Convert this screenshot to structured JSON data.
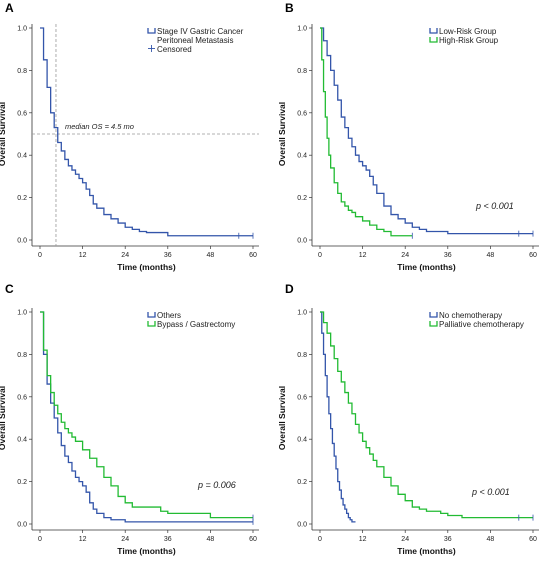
{
  "chart_data": [
    {
      "type": "line",
      "panel_label": "A",
      "xlabel": "Time (months)",
      "ylabel": "Overall Survival",
      "xlim": [
        0,
        60
      ],
      "ylim": [
        0,
        1.0
      ],
      "xticks": [
        0,
        12,
        24,
        36,
        48,
        60
      ],
      "yticks": [
        0.0,
        0.2,
        0.4,
        0.6,
        0.8,
        1.0
      ],
      "legend": "top-right",
      "series": [
        {
          "name": "Stage IV Gastric Cancer Peritoneal Metastasis",
          "name_lines": [
            "Stage IV Gastric Cancer",
            "Peritoneal Metastasis"
          ],
          "color": "#3355aa",
          "x": [
            0,
            1,
            2,
            3,
            4,
            5,
            6,
            7,
            8,
            9,
            10,
            11,
            12,
            13,
            14,
            15,
            16,
            18,
            20,
            22,
            24,
            26,
            28,
            30,
            34,
            36,
            40,
            48,
            56,
            60
          ],
          "y": [
            1.0,
            0.85,
            0.72,
            0.6,
            0.53,
            0.46,
            0.42,
            0.38,
            0.35,
            0.33,
            0.31,
            0.29,
            0.27,
            0.24,
            0.21,
            0.17,
            0.15,
            0.12,
            0.1,
            0.08,
            0.06,
            0.05,
            0.04,
            0.035,
            0.035,
            0.02,
            0.02,
            0.02,
            0.02,
            0.02
          ]
        }
      ],
      "censored_label": "Censored",
      "censored": [
        {
          "x": 56,
          "y": 0.02
        },
        {
          "x": 60,
          "y": 0.02
        }
      ],
      "median_line": {
        "x": 4.5,
        "y": 0.5
      },
      "annotation": "median OS = 4.5 mo"
    },
    {
      "type": "line",
      "panel_label": "B",
      "xlabel": "Time (months)",
      "ylabel": "Overall Survival",
      "xlim": [
        0,
        60
      ],
      "ylim": [
        0,
        1.0
      ],
      "xticks": [
        0,
        12,
        24,
        36,
        48,
        60
      ],
      "yticks": [
        0.0,
        0.2,
        0.4,
        0.6,
        0.8,
        1.0
      ],
      "legend": "top-right",
      "series": [
        {
          "name": "Low-Risk Group",
          "color": "#3355aa",
          "x": [
            0,
            1,
            2,
            3,
            4,
            5,
            6,
            7,
            8,
            9,
            10,
            11,
            12,
            13,
            14,
            15,
            16,
            18,
            20,
            22,
            24,
            26,
            28,
            30,
            34,
            36,
            40,
            48,
            56,
            60
          ],
          "y": [
            1.0,
            0.94,
            0.87,
            0.8,
            0.73,
            0.66,
            0.58,
            0.53,
            0.48,
            0.44,
            0.4,
            0.37,
            0.35,
            0.33,
            0.3,
            0.26,
            0.22,
            0.16,
            0.12,
            0.1,
            0.08,
            0.06,
            0.05,
            0.04,
            0.04,
            0.03,
            0.03,
            0.03,
            0.03,
            0.03
          ]
        },
        {
          "name": "High-Risk Group",
          "color": "#22bb33",
          "x": [
            0,
            0.5,
            1,
            1.5,
            2,
            2.5,
            3,
            4,
            5,
            6,
            7,
            8,
            9,
            10,
            12,
            14,
            16,
            18,
            20,
            22,
            26
          ],
          "y": [
            1.0,
            0.85,
            0.7,
            0.58,
            0.48,
            0.4,
            0.34,
            0.27,
            0.22,
            0.18,
            0.16,
            0.14,
            0.13,
            0.11,
            0.09,
            0.07,
            0.05,
            0.04,
            0.02,
            0.02,
            0.02
          ]
        }
      ],
      "censored": [
        {
          "x": 56,
          "y": 0.03
        },
        {
          "x": 60,
          "y": 0.03
        },
        {
          "x": 26,
          "y": 0.02
        }
      ],
      "pvalue": "p < 0.001"
    },
    {
      "type": "line",
      "panel_label": "C",
      "xlabel": "Time (months)",
      "ylabel": "Overall Survival",
      "xlim": [
        0,
        60
      ],
      "ylim": [
        0,
        1.0
      ],
      "xticks": [
        0,
        12,
        24,
        36,
        48,
        60
      ],
      "yticks": [
        0.0,
        0.2,
        0.4,
        0.6,
        0.8,
        1.0
      ],
      "legend": "top-right",
      "series": [
        {
          "name": "Others",
          "color": "#3355aa",
          "x": [
            0,
            1,
            2,
            3,
            4,
            5,
            6,
            7,
            8,
            9,
            10,
            11,
            12,
            13,
            14,
            15,
            16,
            18,
            20,
            24,
            30,
            36,
            48,
            60
          ],
          "y": [
            1.0,
            0.8,
            0.66,
            0.57,
            0.5,
            0.43,
            0.37,
            0.32,
            0.29,
            0.25,
            0.22,
            0.2,
            0.18,
            0.15,
            0.1,
            0.07,
            0.05,
            0.03,
            0.02,
            0.01,
            0.01,
            0.01,
            0.01,
            0.01
          ]
        },
        {
          "name": "Bypass / Gastrectomy",
          "color": "#22bb33",
          "x": [
            0,
            1,
            2,
            3,
            4,
            5,
            6,
            7,
            8,
            9,
            10,
            12,
            14,
            16,
            18,
            20,
            22,
            24,
            26,
            28,
            30,
            34,
            36,
            48,
            60
          ],
          "y": [
            1.0,
            0.82,
            0.7,
            0.62,
            0.56,
            0.52,
            0.48,
            0.45,
            0.43,
            0.41,
            0.39,
            0.35,
            0.31,
            0.27,
            0.22,
            0.18,
            0.13,
            0.1,
            0.08,
            0.08,
            0.08,
            0.06,
            0.05,
            0.03,
            0.03
          ]
        }
      ],
      "censored": [
        {
          "x": 60,
          "y": 0.03
        },
        {
          "x": 60,
          "y": 0.01
        }
      ],
      "pvalue": "p = 0.006"
    },
    {
      "type": "line",
      "panel_label": "D",
      "xlabel": "Time (months)",
      "ylabel": "Overall Survival",
      "xlim": [
        0,
        60
      ],
      "ylim": [
        0,
        1.0
      ],
      "xticks": [
        0,
        12,
        24,
        36,
        48,
        60
      ],
      "yticks": [
        0.0,
        0.2,
        0.4,
        0.6,
        0.8,
        1.0
      ],
      "legend": "top-right",
      "series": [
        {
          "name": "No chemotherapy",
          "color": "#3355aa",
          "x": [
            0,
            0.5,
            1,
            1.5,
            2,
            2.5,
            3,
            3.5,
            4,
            4.5,
            5,
            5.5,
            6,
            6.5,
            7,
            7.5,
            8,
            8.5,
            9,
            10
          ],
          "y": [
            1.0,
            0.9,
            0.8,
            0.7,
            0.6,
            0.52,
            0.45,
            0.38,
            0.32,
            0.26,
            0.2,
            0.16,
            0.12,
            0.09,
            0.07,
            0.05,
            0.03,
            0.02,
            0.01,
            0.01
          ]
        },
        {
          "name": "Palliative chemotherapy",
          "color": "#22bb33",
          "x": [
            0,
            1,
            2,
            3,
            4,
            5,
            6,
            7,
            8,
            9,
            10,
            11,
            12,
            13,
            14,
            15,
            16,
            18,
            20,
            22,
            24,
            26,
            28,
            30,
            34,
            36,
            40,
            48,
            56,
            60
          ],
          "y": [
            1.0,
            0.95,
            0.9,
            0.84,
            0.78,
            0.72,
            0.67,
            0.62,
            0.57,
            0.52,
            0.47,
            0.43,
            0.39,
            0.36,
            0.33,
            0.3,
            0.27,
            0.22,
            0.18,
            0.14,
            0.11,
            0.08,
            0.07,
            0.06,
            0.05,
            0.04,
            0.03,
            0.03,
            0.03,
            0.03
          ]
        }
      ],
      "censored": [
        {
          "x": 56,
          "y": 0.03
        },
        {
          "x": 60,
          "y": 0.03
        }
      ],
      "pvalue": "p < 0.001"
    }
  ]
}
